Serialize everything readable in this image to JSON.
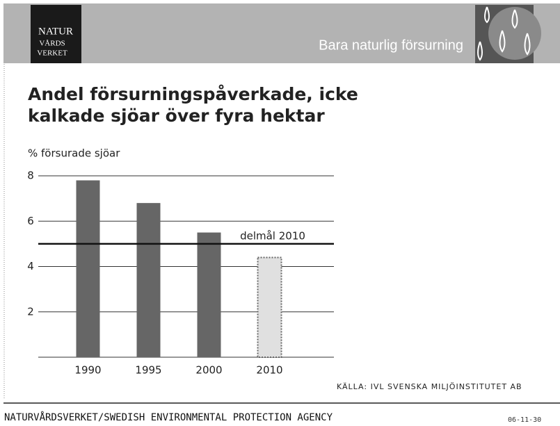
{
  "header": {
    "logo": [
      "NATUR",
      "VÅRDS",
      "VERKET"
    ],
    "slide_title": "Bara naturlig försurning"
  },
  "chart_data": {
    "type": "bar",
    "title": [
      "Andel försurningspåverkade, icke",
      "kalkade sjöar över fyra hektar"
    ],
    "y_label": "% försurade sjöar",
    "categories": [
      "1990",
      "1995",
      "2000",
      "2010"
    ],
    "values": [
      7.8,
      6.8,
      5.5,
      4.4
    ],
    "colors": [
      "#666666",
      "#666666",
      "#666666",
      "#e0e0e0"
    ],
    "ylim": [
      0,
      8
    ],
    "yticks": [
      2,
      4,
      6,
      8
    ],
    "grid": true,
    "reference": {
      "value": 5,
      "label": "delmål 2010"
    },
    "source": "KÄLLA: IVL SVENSKA MILJÖINSTITUTET AB"
  },
  "footer": {
    "agency": "NATURVÅRDSVERKET/SWEDISH ENVIRONMENTAL PROTECTION AGENCY",
    "date": "06-11-30"
  }
}
